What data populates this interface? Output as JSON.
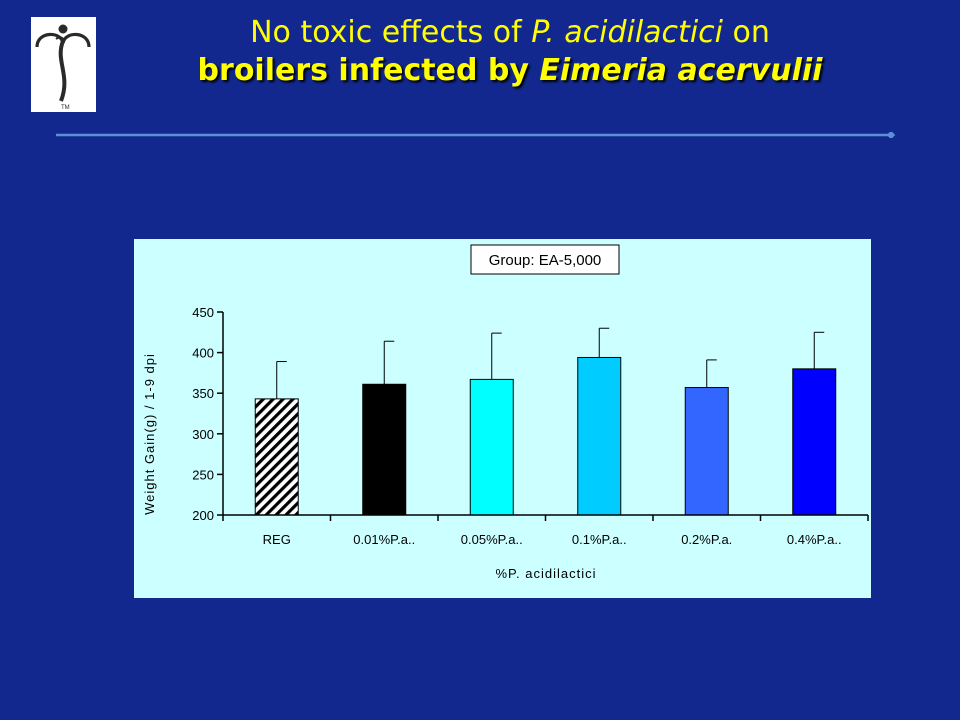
{
  "slide": {
    "title_line1_prefix": "No toxic effects of ",
    "title_line1_italic": "P. acidilactici",
    "title_line1_suffix": " on",
    "title_line2_prefix": "broilers infected by ",
    "title_line2_italic": "Eimeria acervulii",
    "colors": {
      "background": "#12288e",
      "title": "#ffff00",
      "rule": "#5b8fd6"
    },
    "logo_icon": "caduceus-t-logo-icon",
    "logo_mark": "TM"
  },
  "chart_data": {
    "type": "bar",
    "title": "Group: EA-5,000",
    "xlabel": "%P. acidilactici",
    "ylabel": "Weight Gain(g) / 1-9 dpi",
    "ylim": [
      200,
      450
    ],
    "yticks": [
      200,
      250,
      300,
      350,
      400,
      450
    ],
    "categories": [
      "REG",
      "0.01%P.a..",
      "0.05%P.a..",
      "0.1%P.a..",
      "0.2%P.a.",
      "0.4%P.a.."
    ],
    "values": [
      343,
      361,
      367,
      394,
      357,
      380
    ],
    "error": [
      46,
      53,
      57,
      36,
      34,
      45
    ],
    "bar_colors": [
      "hatch",
      "#000000",
      "#00ffff",
      "#00ccff",
      "#3366ff",
      "#0000ff"
    ],
    "plot_background": "#ccffff",
    "legend": "none",
    "grid": false
  }
}
